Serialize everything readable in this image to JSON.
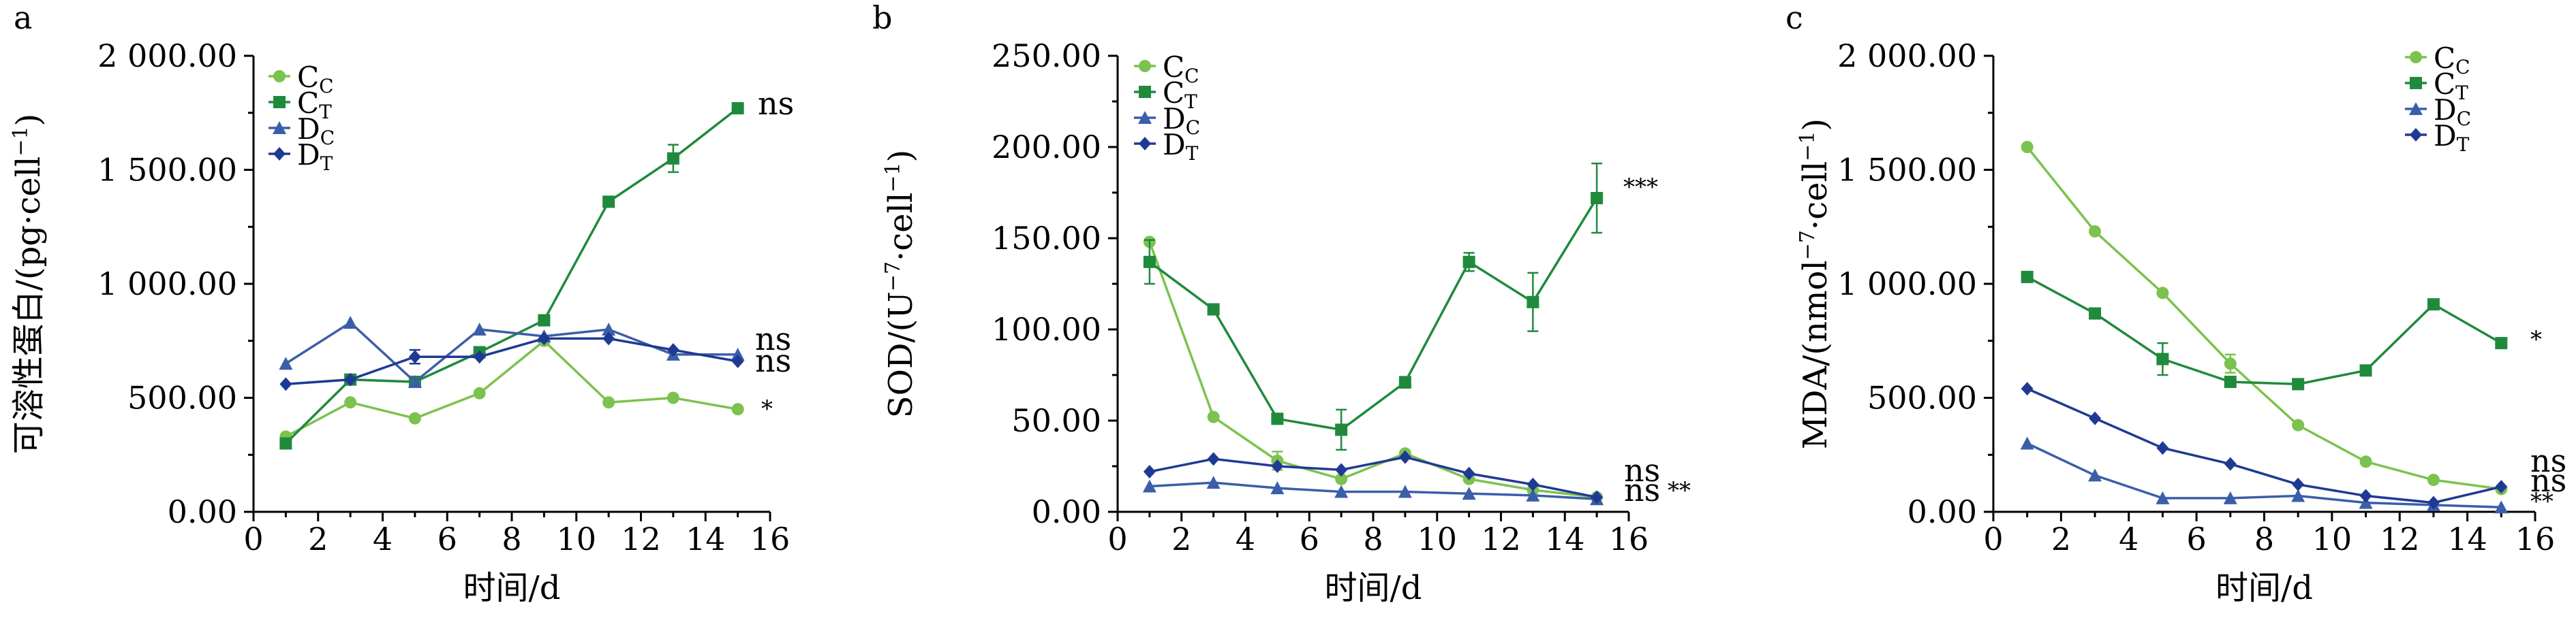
{
  "chart_data": [
    {
      "type": "line",
      "panel_label": "a",
      "ylabel_main": "可溶性蛋白",
      "ylabel_unit": "/(pg·cell",
      "ylabel_sup": "−1",
      "ylabel_close": ")",
      "xlabel": "时间/d",
      "xlim": [
        0,
        16
      ],
      "ylim": [
        0,
        2000
      ],
      "xticks": [
        "0",
        "2",
        "4",
        "6",
        "8",
        "10",
        "12",
        "14",
        "16"
      ],
      "yticks": [
        "0.00",
        "500.00",
        "1 000.00",
        "1 500.00",
        "2 000.00"
      ],
      "legend_position": "top-left",
      "series": [
        {
          "key": "Cc",
          "name_main": "C",
          "name_sub": "C",
          "color": "#7cc24e",
          "marker": "circle",
          "x": [
            1,
            3,
            5,
            7,
            9,
            11,
            13,
            15
          ],
          "y": [
            330,
            480,
            410,
            520,
            750,
            480,
            500,
            450
          ],
          "err": [
            0,
            0,
            0,
            0,
            0,
            0,
            0,
            0
          ]
        },
        {
          "key": "Ct",
          "name_main": "C",
          "name_sub": "T",
          "color": "#1f8a3c",
          "marker": "square",
          "x": [
            1,
            3,
            5,
            7,
            9,
            11,
            13,
            15
          ],
          "y": [
            300,
            580,
            570,
            700,
            840,
            1360,
            1550,
            1770
          ],
          "err": [
            0,
            0,
            0,
            0,
            0,
            0,
            60,
            0
          ]
        },
        {
          "key": "Dc",
          "name_main": "D",
          "name_sub": "C",
          "color": "#3b5ea8",
          "marker": "triangle",
          "x": [
            1,
            3,
            5,
            7,
            9,
            11,
            13,
            15
          ],
          "y": [
            650,
            830,
            570,
            800,
            770,
            800,
            690,
            690
          ],
          "err": [
            0,
            0,
            0,
            0,
            0,
            0,
            0,
            0
          ]
        },
        {
          "key": "Dt",
          "name_main": "D",
          "name_sub": "T",
          "color": "#1f3a93",
          "marker": "diamond",
          "x": [
            1,
            3,
            5,
            7,
            9,
            11,
            13,
            15
          ],
          "y": [
            560,
            580,
            680,
            680,
            760,
            760,
            710,
            660
          ],
          "err": [
            0,
            0,
            30,
            0,
            0,
            0,
            0,
            0
          ]
        }
      ],
      "annotations": [
        {
          "text": "ns",
          "x": 15.2,
          "y": 1770
        },
        {
          "text": "ns",
          "x": 15.2,
          "y": 700
        },
        {
          "text": "ns",
          "x": 15.2,
          "y": 610
        },
        {
          "text": "*",
          "x": 15.3,
          "y": 440
        }
      ]
    },
    {
      "type": "line",
      "panel_label": "b",
      "ylabel_main": "SOD/(U",
      "ylabel_sup": "−7",
      "ylabel_unit": "·cell",
      "ylabel_sup2": "−1",
      "ylabel_close": ")",
      "xlabel": "时间/d",
      "xlim": [
        0,
        16
      ],
      "ylim": [
        0,
        250
      ],
      "xticks": [
        "0",
        "2",
        "4",
        "6",
        "8",
        "10",
        "12",
        "14",
        "16"
      ],
      "yticks": [
        "0.00",
        "50.00",
        "100.00",
        "150.00",
        "200.00",
        "250.00"
      ],
      "legend_position": "top-left",
      "series": [
        {
          "key": "Cc",
          "name_main": "C",
          "name_sub": "C",
          "color": "#7cc24e",
          "marker": "circle",
          "x": [
            1,
            3,
            5,
            7,
            9,
            11,
            13,
            15
          ],
          "y": [
            148,
            52,
            28,
            18,
            32,
            18,
            12,
            8
          ],
          "err": [
            0,
            0,
            5,
            0,
            0,
            0,
            0,
            0
          ]
        },
        {
          "key": "Ct",
          "name_main": "C",
          "name_sub": "T",
          "color": "#1f8a3c",
          "marker": "square",
          "x": [
            1,
            3,
            5,
            7,
            9,
            11,
            13,
            15
          ],
          "y": [
            137,
            111,
            51,
            45,
            71,
            137,
            115,
            172
          ],
          "err": [
            12,
            0,
            0,
            11,
            3,
            5,
            16,
            19
          ]
        },
        {
          "key": "Dc",
          "name_main": "D",
          "name_sub": "C",
          "color": "#3b5ea8",
          "marker": "triangle",
          "x": [
            1,
            3,
            5,
            7,
            9,
            11,
            13,
            15
          ],
          "y": [
            14,
            16,
            13,
            11,
            11,
            10,
            9,
            7
          ],
          "err": [
            0,
            0,
            0,
            0,
            0,
            0,
            0,
            0
          ]
        },
        {
          "key": "Dt",
          "name_main": "D",
          "name_sub": "T",
          "color": "#1f3a93",
          "marker": "diamond",
          "x": [
            1,
            3,
            5,
            7,
            9,
            11,
            13,
            15
          ],
          "y": [
            22,
            29,
            25,
            23,
            30,
            21,
            15,
            8
          ],
          "err": [
            0,
            0,
            0,
            0,
            0,
            0,
            0,
            0
          ]
        }
      ],
      "annotations": [
        {
          "text": "***",
          "x": 15.4,
          "y": 170
        },
        {
          "text": "ns",
          "x": 15.3,
          "y": 16
        },
        {
          "text": "ns",
          "x": 15.3,
          "y": 5
        },
        {
          "text": "**",
          "x": 16.4,
          "y": 5
        }
      ]
    },
    {
      "type": "line",
      "panel_label": "c",
      "ylabel_main": "MDA/(nmol",
      "ylabel_sup": "−7",
      "ylabel_unit": "·cell",
      "ylabel_sup2": "−1",
      "ylabel_close": ")",
      "xlabel": "时间/d",
      "xlim": [
        0,
        16
      ],
      "ylim": [
        0,
        2000
      ],
      "xticks": [
        "0",
        "2",
        "4",
        "6",
        "8",
        "10",
        "12",
        "14",
        "16"
      ],
      "yticks": [
        "0.00",
        "500.00",
        "1 000.00",
        "1 500.00",
        "2 000.00"
      ],
      "legend_position": "top-right",
      "series": [
        {
          "key": "Cc",
          "name_main": "C",
          "name_sub": "C",
          "color": "#7cc24e",
          "marker": "circle",
          "x": [
            1,
            3,
            5,
            7,
            9,
            11,
            13,
            15
          ],
          "y": [
            1600,
            1230,
            960,
            650,
            380,
            220,
            140,
            100
          ],
          "err": [
            0,
            0,
            0,
            40,
            0,
            0,
            0,
            0
          ]
        },
        {
          "key": "Ct",
          "name_main": "C",
          "name_sub": "T",
          "color": "#1f8a3c",
          "marker": "square",
          "x": [
            1,
            3,
            5,
            7,
            9,
            11,
            13,
            15
          ],
          "y": [
            1030,
            870,
            670,
            570,
            560,
            620,
            910,
            740
          ],
          "err": [
            0,
            0,
            70,
            0,
            0,
            0,
            0,
            0
          ]
        },
        {
          "key": "Dc",
          "name_main": "D",
          "name_sub": "C",
          "color": "#3b5ea8",
          "marker": "triangle",
          "x": [
            1,
            3,
            5,
            7,
            9,
            11,
            13,
            15
          ],
          "y": [
            300,
            160,
            60,
            60,
            70,
            40,
            30,
            20
          ],
          "err": [
            0,
            0,
            0,
            0,
            0,
            0,
            0,
            0
          ]
        },
        {
          "key": "Dt",
          "name_main": "D",
          "name_sub": "T",
          "color": "#1f3a93",
          "marker": "diamond",
          "x": [
            1,
            3,
            5,
            7,
            9,
            11,
            13,
            15
          ],
          "y": [
            540,
            410,
            280,
            210,
            120,
            70,
            40,
            110
          ],
          "err": [
            0,
            0,
            0,
            0,
            0,
            0,
            0,
            0
          ]
        }
      ],
      "annotations": [
        {
          "text": "*",
          "x": 15.3,
          "y": 720
        },
        {
          "text": "ns",
          "x": 15.2,
          "y": 210
        },
        {
          "text": "ns",
          "x": 15.2,
          "y": 120
        },
        {
          "text": "**",
          "x": 15.3,
          "y": 30
        }
      ]
    }
  ]
}
